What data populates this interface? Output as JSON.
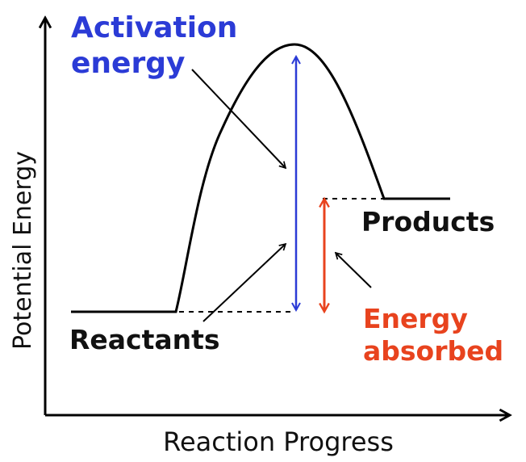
{
  "axes": {
    "y_label": "Potential Energy",
    "x_label": "Reaction Progress"
  },
  "labels": {
    "activation_line1": "Activation",
    "activation_line2": "energy",
    "products": "Products",
    "reactants": "Reactants",
    "absorbed_line1": "Energy",
    "absorbed_line2": "absorbed"
  },
  "colors": {
    "curve": "#000000",
    "activation": "#2b3bd6",
    "absorbed": "#e8431e",
    "text": "#111111"
  }
}
